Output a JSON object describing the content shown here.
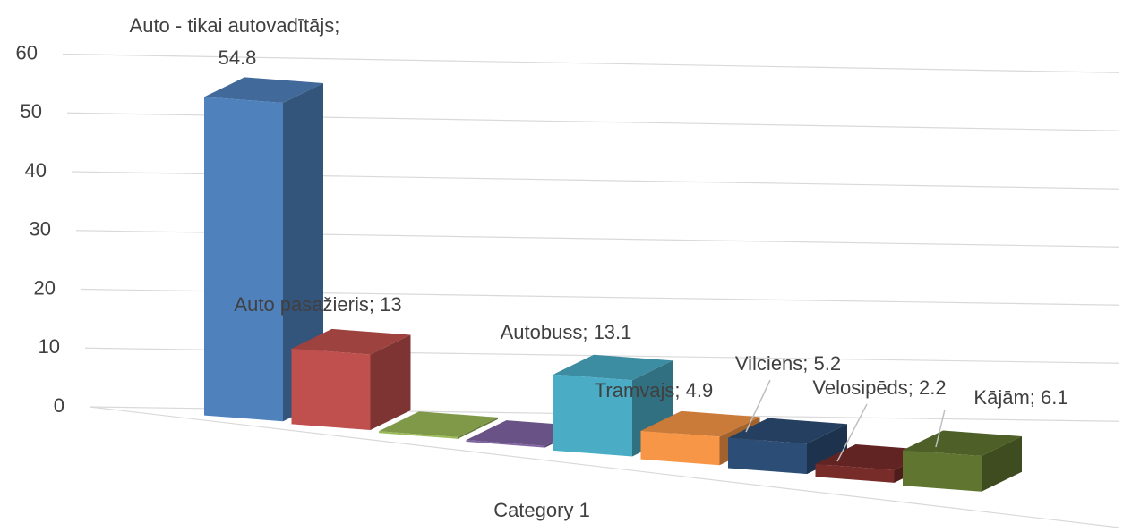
{
  "chart_data": {
    "type": "bar3d",
    "categories": [
      "Category 1"
    ],
    "label_separator": "; ",
    "series": [
      {
        "name": "Auto - tikai autovadītājs",
        "color": "#4f81bd",
        "values": [
          54.8
        ]
      },
      {
        "name": "Auto pasažieris",
        "color": "#c0504d",
        "values": [
          13
        ]
      },
      {
        "name": null,
        "color": "#9bbb59",
        "values": [
          0.3
        ]
      },
      {
        "name": null,
        "color": "#8064a2",
        "values": [
          0.3
        ]
      },
      {
        "name": "Autobuss",
        "color": "#4bacc6",
        "values": [
          13.1
        ]
      },
      {
        "name": "Tramvajs",
        "color": "#f79646",
        "values": [
          4.9
        ]
      },
      {
        "name": "Vilciens",
        "color": "#2c4d75",
        "values": [
          5.2
        ]
      },
      {
        "name": "Velosipēds",
        "color": "#772c2a",
        "values": [
          2.2
        ]
      },
      {
        "name": "Kājām",
        "color": "#5f7530",
        "values": [
          6.1
        ]
      }
    ],
    "ylim": [
      0,
      60
    ],
    "yticks": [
      0,
      10,
      20,
      30,
      40,
      50,
      60
    ],
    "grid": true
  }
}
